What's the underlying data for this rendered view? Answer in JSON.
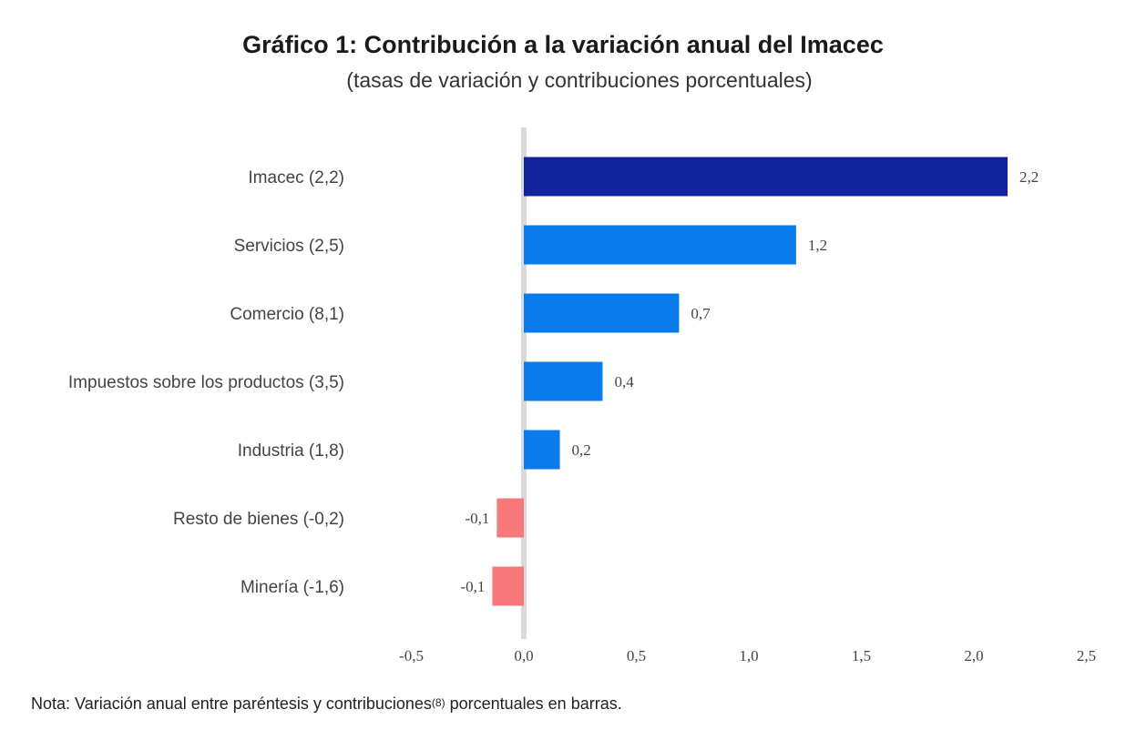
{
  "header": {
    "title": "Gráfico 1: Contribución a la variación anual del Imacec",
    "subtitle": "(tasas de variación y contribuciones porcentuales)"
  },
  "chart_data": {
    "type": "bar",
    "orientation": "horizontal",
    "categories": [
      "Imacec (2,2)",
      "Servicios (2,5)",
      "Comercio (8,1)",
      "Impuestos sobre los productos (3,5)",
      "Industria (1,8)",
      "Resto de bienes (-0,2)",
      "Minería (-1,6)"
    ],
    "values": [
      2.15,
      1.21,
      0.69,
      0.35,
      0.16,
      -0.12,
      -0.14
    ],
    "value_labels": [
      "2,2",
      "1,2",
      "0,7",
      "0,4",
      "0,2",
      "-0,1",
      "-0,1"
    ],
    "colors": [
      "#13239c",
      "#0a7beb",
      "#0a7beb",
      "#0a7beb",
      "#0a7beb",
      "#f7787a",
      "#f7787a"
    ],
    "xlim": [
      -0.5,
      2.5
    ],
    "xticks": [
      -0.5,
      0,
      0.5,
      1,
      1.5,
      2,
      2.5
    ],
    "xtick_labels": [
      "-0,5",
      "0,0",
      "0,5",
      "1,0",
      "1,5",
      "2,0",
      "2,5"
    ],
    "zero_line_color": "#d9d9d9",
    "grid": false,
    "legend": "none"
  },
  "note": {
    "prefix": "Nota: Variación anual entre paréntesis y contribuciones",
    "marker": "(8)",
    "suffix": " porcentuales en barras."
  }
}
